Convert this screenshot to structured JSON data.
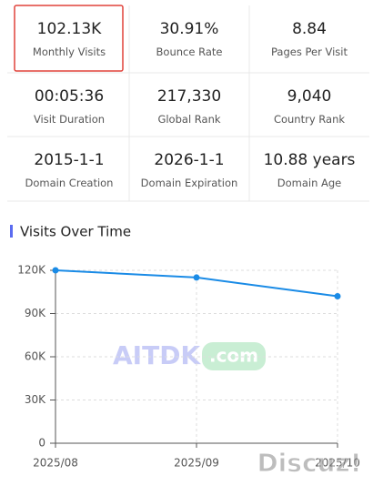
{
  "stats": [
    {
      "value": "102.13K",
      "label": "Monthly Visits"
    },
    {
      "value": "30.91%",
      "label": "Bounce Rate"
    },
    {
      "value": "8.84",
      "label": "Pages Per Visit"
    },
    {
      "value": "00:05:36",
      "label": "Visit Duration"
    },
    {
      "value": "217,330",
      "label": "Global Rank"
    },
    {
      "value": "9,040",
      "label": "Country Rank"
    },
    {
      "value": "2015-1-1",
      "label": "Domain Creation"
    },
    {
      "value": "2026-1-1",
      "label": "Domain Expiration"
    },
    {
      "value": "10.88 years",
      "label": "Domain Age"
    }
  ],
  "watermarks": {
    "brand": "AITDK",
    "domain": ".com",
    "forum": "Discuz!"
  },
  "chart_data": {
    "type": "line",
    "title": "Visits Over Time",
    "categories": [
      "2025/08",
      "2025/09",
      "2025/10"
    ],
    "series": [
      {
        "name": "Visits",
        "color": "#1a8be6",
        "values": [
          120000,
          115000,
          102000
        ]
      }
    ],
    "ylim": [
      0,
      120000
    ],
    "yticks": [
      0,
      {
        "value": 30000,
        "label": "30K"
      },
      {
        "value": 60000,
        "label": "60K"
      },
      {
        "value": 90000,
        "label": "90K"
      },
      {
        "value": 120000,
        "label": "120K"
      }
    ],
    "grid": true
  }
}
